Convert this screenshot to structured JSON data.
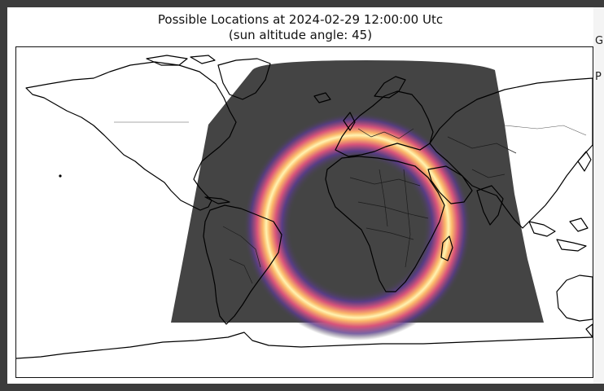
{
  "figure": {
    "title_line1": "Possible Locations at 2024-02-29 12:00:00 Utc",
    "title_line2": "(sun altitude angle: 45)"
  },
  "colors": {
    "night_overlay": "#444444",
    "ring_outer": "#5a3c8c",
    "ring_mid": "#d8547a",
    "ring_core": "#fff3b0",
    "coastline": "#000000",
    "window_bg": "#3c3c3c"
  },
  "window_edge": {
    "glyphs": [
      "G",
      "P"
    ]
  }
}
